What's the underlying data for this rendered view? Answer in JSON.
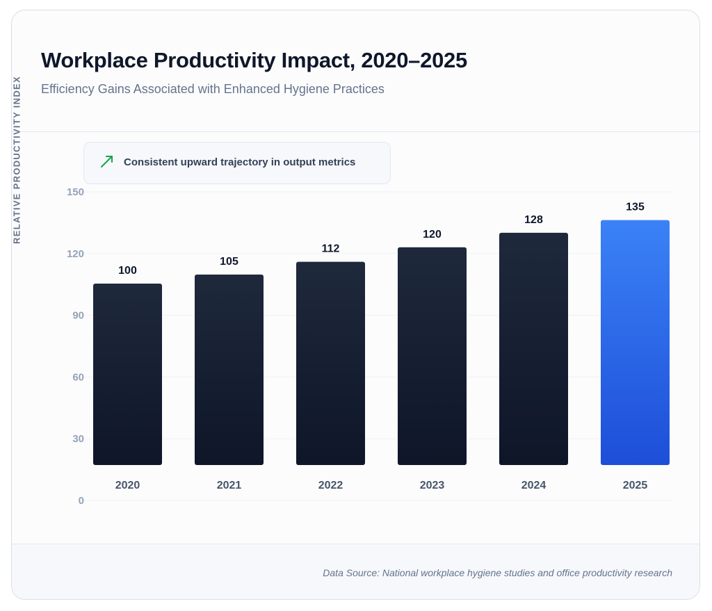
{
  "title": "Workplace Productivity Impact, 2020–2025",
  "subtitle": "Efficiency Gains Associated with Enhanced Hygiene Practices",
  "callout": {
    "icon": "trend-up-arrow-icon",
    "text": "Consistent upward trajectory in output metrics",
    "icon_color": "#16a34a"
  },
  "footer": {
    "source": "Data Source: National workplace hygiene studies and office productivity research"
  },
  "colors": {
    "bar": "#131b2e",
    "highlight": "#2f6ff0"
  },
  "chart_data": {
    "type": "bar",
    "categories": [
      "2020",
      "2021",
      "2022",
      "2023",
      "2024",
      "2025"
    ],
    "values": [
      100,
      105,
      112,
      120,
      128,
      135
    ],
    "highlight_index": 5,
    "ylabel": "RELATIVE PRODUCTIVITY INDEX",
    "xlabel": "",
    "ylim": [
      0,
      150
    ],
    "yticks": [
      0,
      30,
      60,
      90,
      120,
      150
    ],
    "grid": true,
    "legend": "none"
  }
}
